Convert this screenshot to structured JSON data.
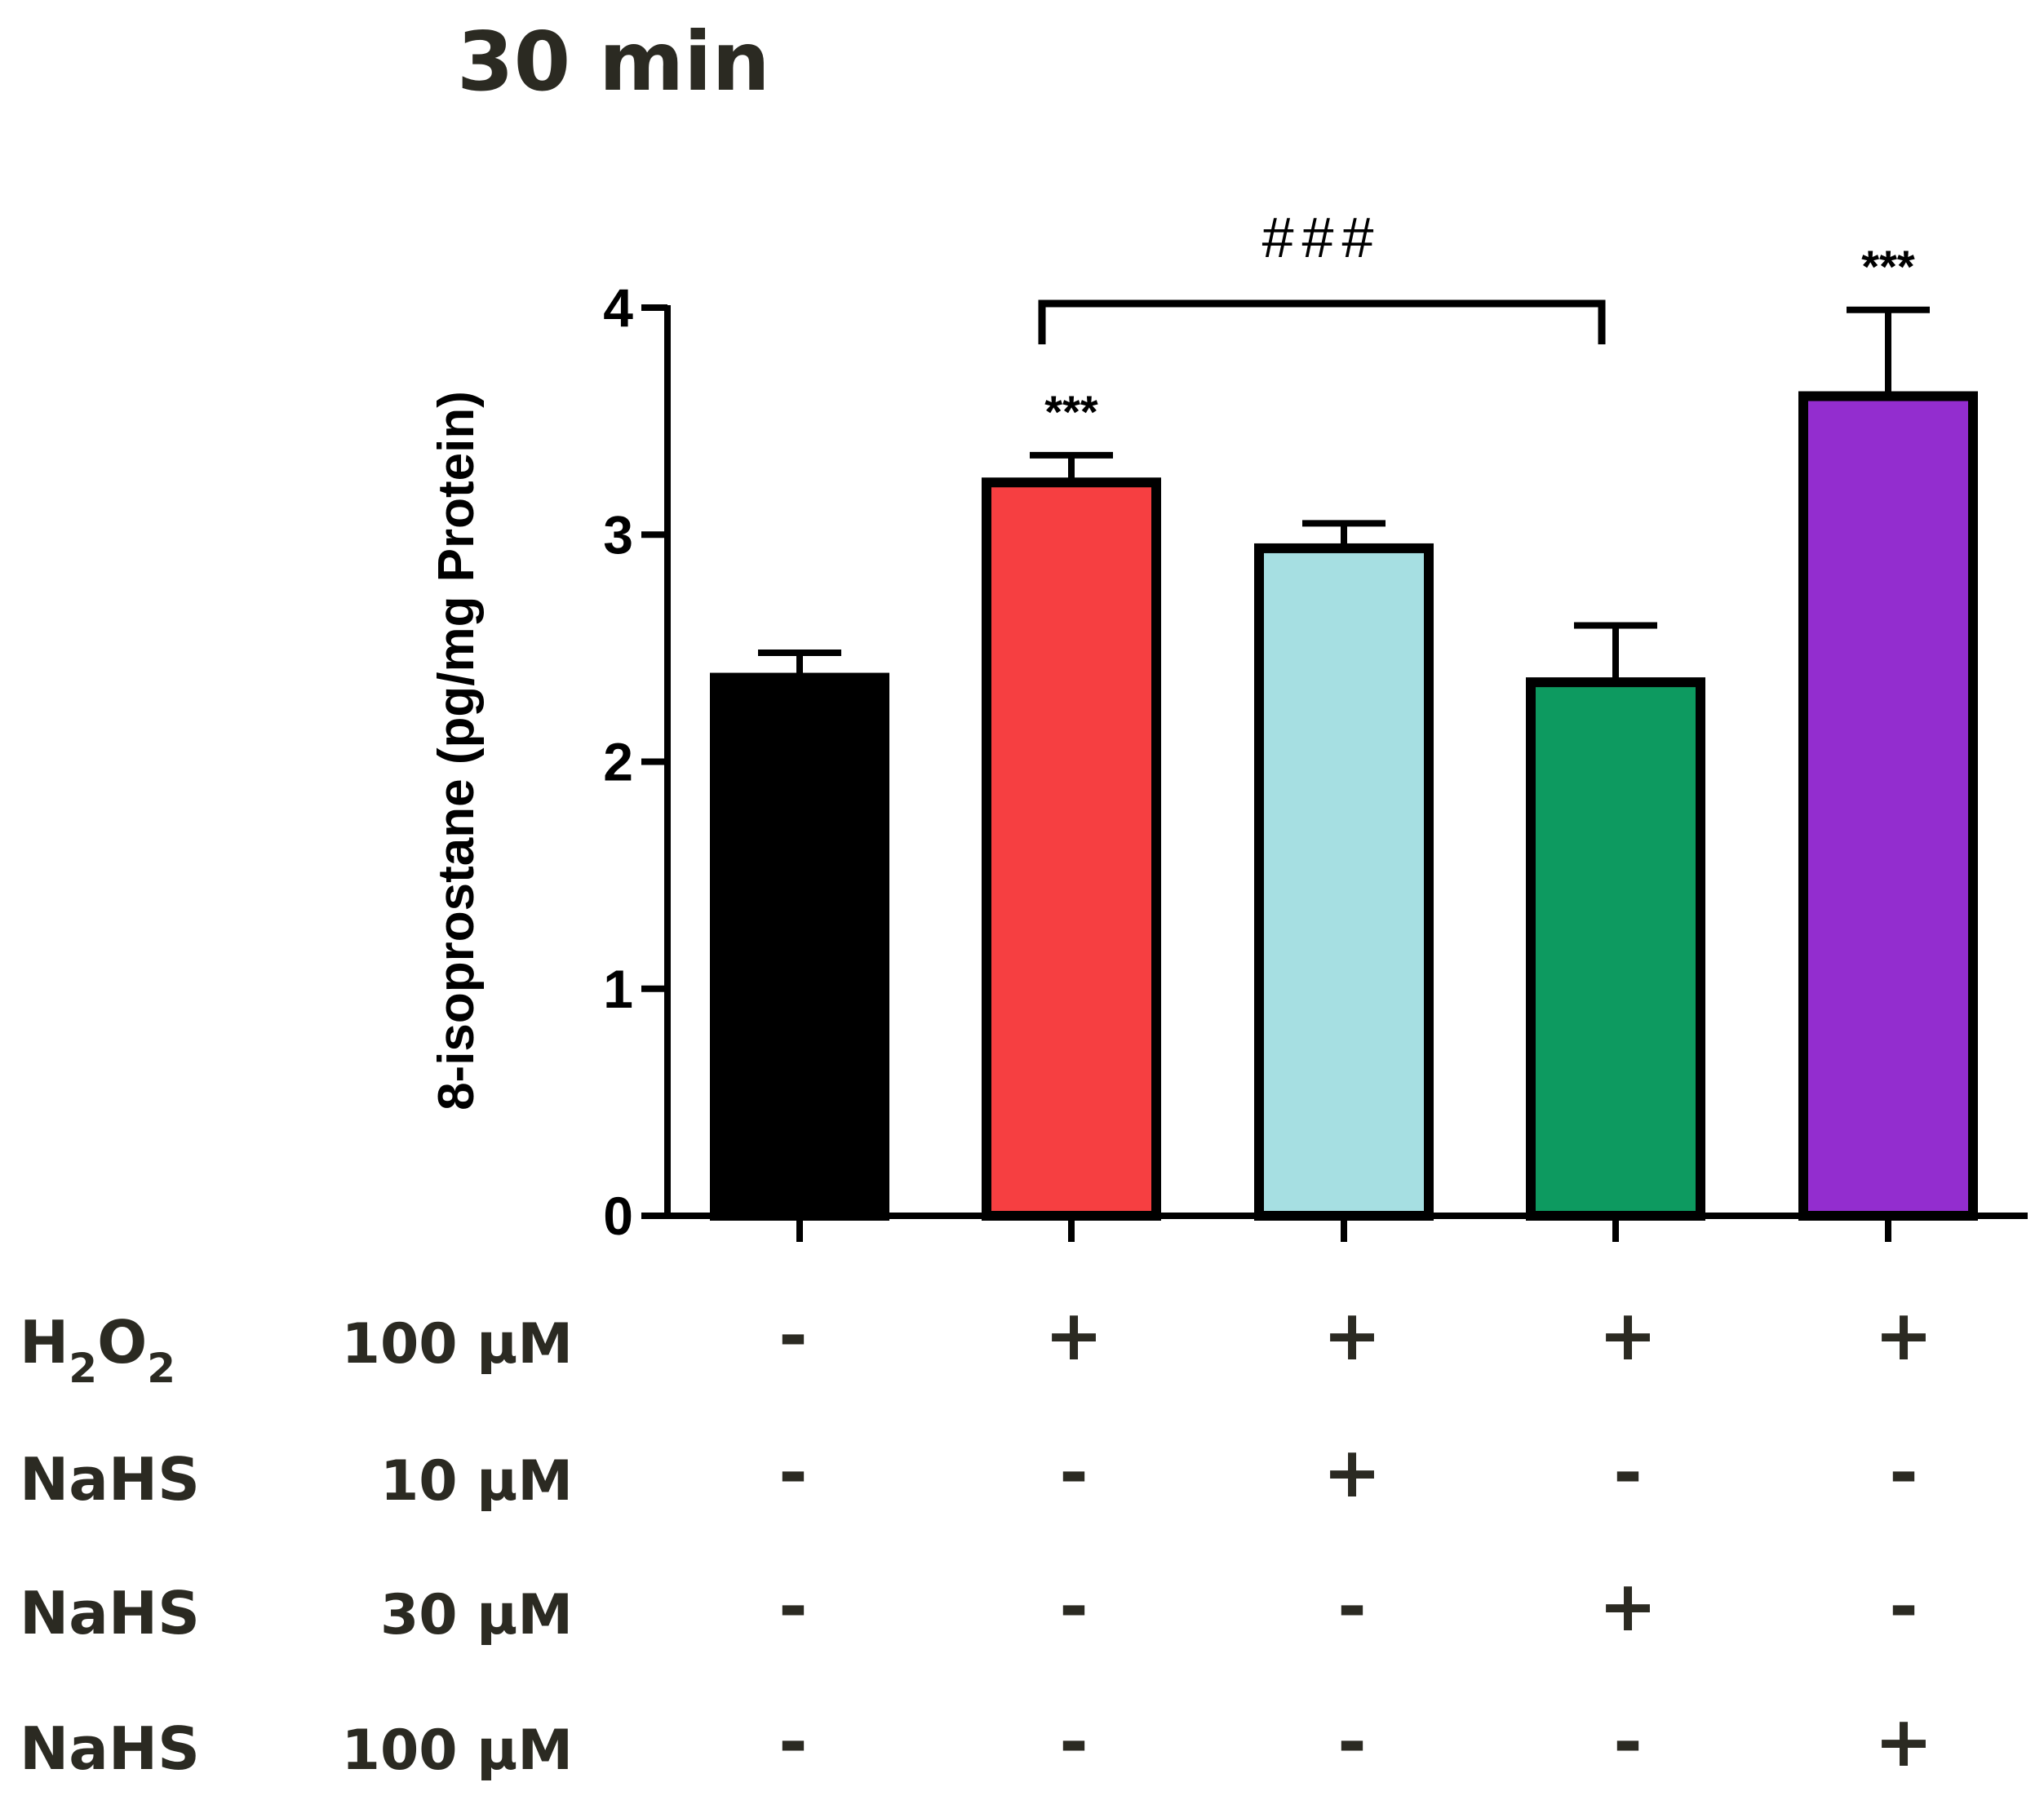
{
  "chart_data": {
    "type": "bar",
    "title": "30 min",
    "ylabel": "8-isoprostane (pg/mg Protein)",
    "xlabel": "",
    "ylim": [
      0,
      4
    ],
    "yticks": [
      "0",
      "1",
      "2",
      "3",
      "4"
    ],
    "values": [
      2.37,
      3.23,
      2.94,
      2.35,
      3.61
    ],
    "errors": [
      0.11,
      0.12,
      0.11,
      0.25,
      0.38
    ],
    "colors": [
      "#000000",
      "#f63f41",
      "#a6dfe2",
      "#0d9a60",
      "#932dcf"
    ],
    "annotations": [
      "",
      "***",
      "",
      "",
      "***"
    ],
    "comparison": {
      "from": 1,
      "to": 3,
      "label": "###"
    }
  },
  "treatments": [
    {
      "name": "H2O2",
      "conc": "100 μM",
      "signs": [
        "-",
        "+",
        "+",
        "+",
        "+"
      ]
    },
    {
      "name": "NaHS",
      "conc": "10 μM",
      "signs": [
        "-",
        "-",
        "+",
        "-",
        "-"
      ]
    },
    {
      "name": "NaHS",
      "conc": "30 μM",
      "signs": [
        "-",
        "-",
        "-",
        "+",
        "-"
      ]
    },
    {
      "name": "NaHS",
      "conc": "100 μM",
      "signs": [
        "-",
        "-",
        "-",
        "-",
        "+"
      ]
    }
  ]
}
